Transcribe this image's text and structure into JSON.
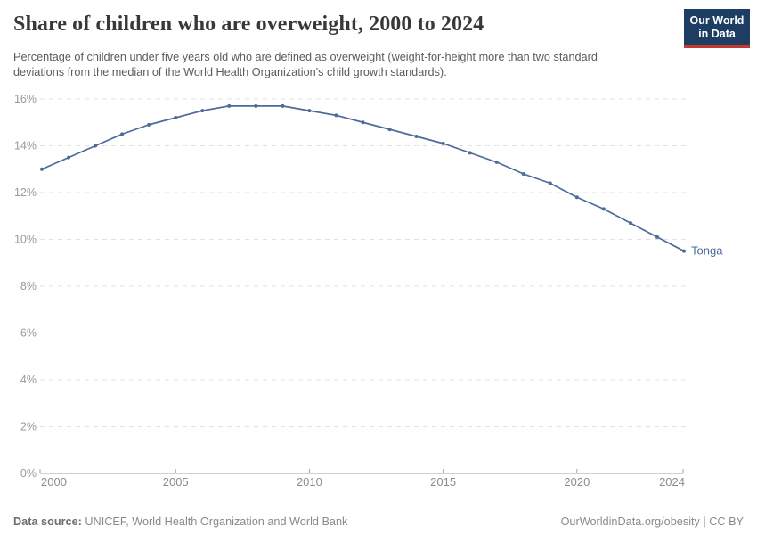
{
  "header": {
    "title": "Share of children who are overweight, 2000 to 2024",
    "subtitle": "Percentage of children under five years old who are defined as overweight (weight-for-height more than two standard deviations from the median of the World Health Organization's child growth standards).",
    "logo": {
      "line1": "Our World",
      "line2": "in Data",
      "bg": "#1d3d63",
      "bar": "#c23a2f"
    }
  },
  "chart_data": {
    "type": "line",
    "title": "Share of children who are overweight, 2000 to 2024",
    "xlabel": "",
    "ylabel": "",
    "xlim": [
      2000,
      2024
    ],
    "ylim": [
      0,
      16
    ],
    "x_ticks": [
      2000,
      2005,
      2010,
      2015,
      2020,
      2024
    ],
    "y_ticks": [
      0,
      2,
      4,
      6,
      8,
      10,
      12,
      14,
      16
    ],
    "y_tick_suffix": "%",
    "grid": "horizontal-dashed",
    "legend_position": "end-of-line-label",
    "x": [
      2000,
      2001,
      2002,
      2003,
      2004,
      2005,
      2006,
      2007,
      2008,
      2009,
      2010,
      2011,
      2012,
      2013,
      2014,
      2015,
      2016,
      2017,
      2018,
      2019,
      2020,
      2021,
      2022,
      2023,
      2024
    ],
    "series": [
      {
        "name": "Tonga",
        "color": "#4c6a9c",
        "values": [
          13.0,
          13.5,
          14.0,
          14.5,
          14.9,
          15.2,
          15.5,
          15.7,
          15.7,
          15.7,
          15.5,
          15.3,
          15.0,
          14.7,
          14.4,
          14.1,
          13.7,
          13.3,
          12.8,
          12.4,
          11.8,
          11.3,
          10.7,
          10.1,
          9.5
        ]
      }
    ],
    "colors": {
      "gridline": "#e1e1e1",
      "axis": "#a3a3a3",
      "y_tick_label": "#999999",
      "x_tick_label": "#8c8c8c"
    }
  },
  "footer": {
    "datasource_label": "Data source:",
    "datasource": "UNICEF, World Health Organization and World Bank",
    "link": "OurWorldinData.org/obesity | CC BY"
  }
}
